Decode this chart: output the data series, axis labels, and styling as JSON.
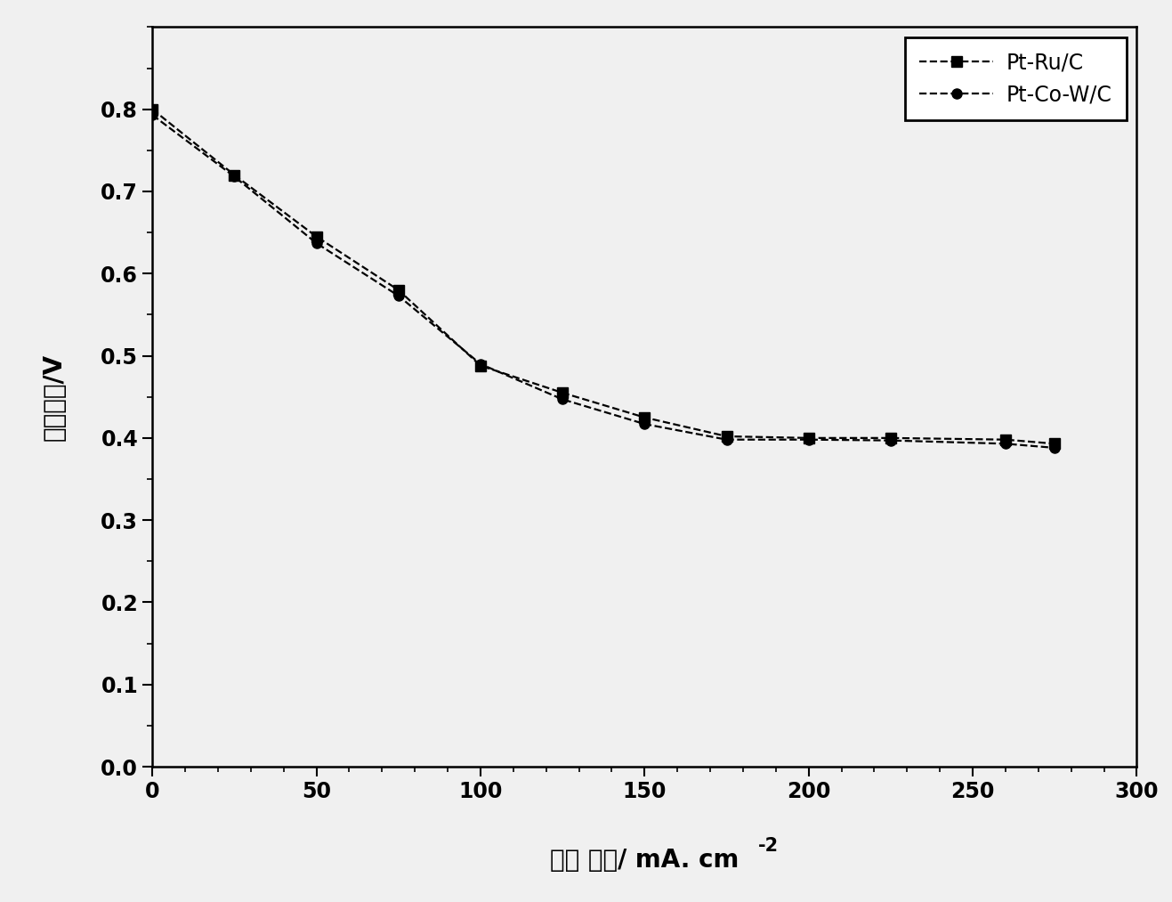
{
  "series1_label": "Pt-Ru/C",
  "series2_label": "Pt-Co-W/C",
  "series1_x": [
    0,
    25,
    50,
    75,
    100,
    125,
    150,
    175,
    200,
    225,
    260,
    275
  ],
  "series1_y": [
    0.8,
    0.72,
    0.645,
    0.58,
    0.488,
    0.455,
    0.425,
    0.402,
    0.4,
    0.4,
    0.398,
    0.393
  ],
  "series2_x": [
    0,
    25,
    50,
    75,
    100,
    125,
    150,
    175,
    200,
    225,
    260,
    275
  ],
  "series2_y": [
    0.793,
    0.718,
    0.637,
    0.573,
    0.49,
    0.447,
    0.417,
    0.398,
    0.398,
    0.397,
    0.393,
    0.388
  ],
  "xlabel_main": "电流 密度/ mA. cm",
  "xlabel_sup": "-2",
  "ylabel": "电池电压/V",
  "xlim": [
    0,
    300
  ],
  "ylim": [
    0.0,
    0.9
  ],
  "xticks": [
    0,
    50,
    100,
    150,
    200,
    250,
    300
  ],
  "yticks": [
    0.0,
    0.1,
    0.2,
    0.3,
    0.4,
    0.5,
    0.6,
    0.7,
    0.8
  ],
  "line_color": "#000000",
  "background_color": "#f0f0f0",
  "legend_loc": "upper right",
  "figsize": [
    13.17,
    10.13
  ],
  "dpi": 100
}
